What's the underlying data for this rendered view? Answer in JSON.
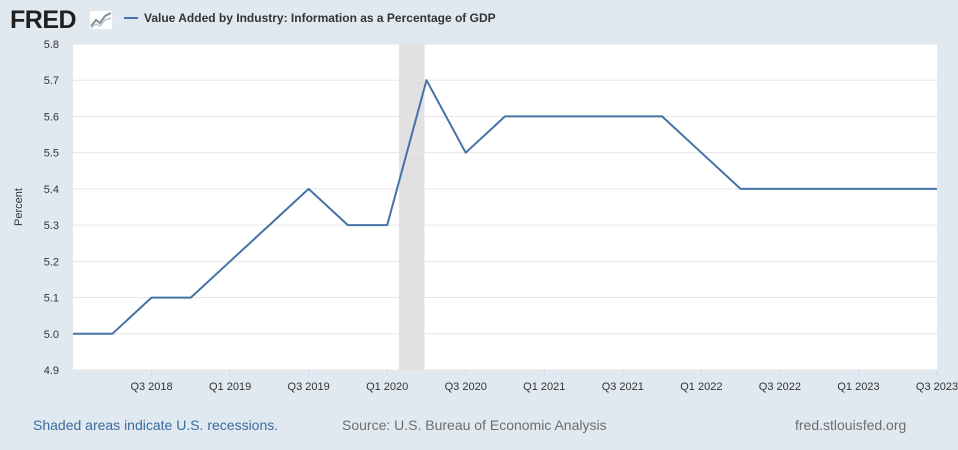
{
  "header": {
    "logo_text": "FRED",
    "logo_icon": "line-chart-icon",
    "legend_label": "Value Added by Industry: Information as a Percentage of GDP",
    "series_color": "#4572a7"
  },
  "footer": {
    "recession_note": "Shaded areas indicate U.S. recessions.",
    "source": "Source: U.S. Bureau of Economic Analysis",
    "site": "fred.stlouisfed.org"
  },
  "chart_data": {
    "type": "line",
    "title": "Value Added by Industry: Information as a Percentage of GDP",
    "xlabel": "",
    "ylabel": "Percent",
    "ylim": [
      4.9,
      5.8
    ],
    "yticks": [
      4.9,
      5.0,
      5.1,
      5.2,
      5.3,
      5.4,
      5.5,
      5.6,
      5.7,
      5.8
    ],
    "x": [
      "2018 Q1",
      "2018 Q2",
      "2018 Q3",
      "2018 Q4",
      "2019 Q1",
      "2019 Q2",
      "2019 Q3",
      "2019 Q4",
      "2020 Q1",
      "2020 Q2",
      "2020 Q3",
      "2020 Q4",
      "2021 Q1",
      "2021 Q2",
      "2021 Q3",
      "2021 Q4",
      "2022 Q1",
      "2022 Q2",
      "2022 Q3",
      "2022 Q4",
      "2023 Q1",
      "2023 Q2",
      "2023 Q3"
    ],
    "series": [
      {
        "name": "Value Added by Industry: Information as a Percentage of GDP",
        "values": [
          5.0,
          5.0,
          5.1,
          5.1,
          5.2,
          5.3,
          5.4,
          5.3,
          5.3,
          5.7,
          5.5,
          5.6,
          5.6,
          5.6,
          5.6,
          5.6,
          5.5,
          5.4,
          5.4,
          5.4,
          5.4,
          5.4,
          5.4
        ]
      }
    ],
    "xtick_labels": [
      {
        "index": 2,
        "label": "Q3 2018"
      },
      {
        "index": 4,
        "label": "Q1 2019"
      },
      {
        "index": 6,
        "label": "Q3 2019"
      },
      {
        "index": 8,
        "label": "Q1 2020"
      },
      {
        "index": 10,
        "label": "Q3 2020"
      },
      {
        "index": 12,
        "label": "Q1 2021"
      },
      {
        "index": 14,
        "label": "Q3 2021"
      },
      {
        "index": 16,
        "label": "Q1 2022"
      },
      {
        "index": 18,
        "label": "Q3 2022"
      },
      {
        "index": 20,
        "label": "Q1 2023"
      },
      {
        "index": 22,
        "label": "Q3 2023"
      }
    ],
    "recessions": [
      {
        "start_index": 8.3,
        "end_index": 8.95,
        "label": "2020 Q1 – 2020 Q2"
      }
    ],
    "grid": true,
    "legend": "top-left"
  }
}
